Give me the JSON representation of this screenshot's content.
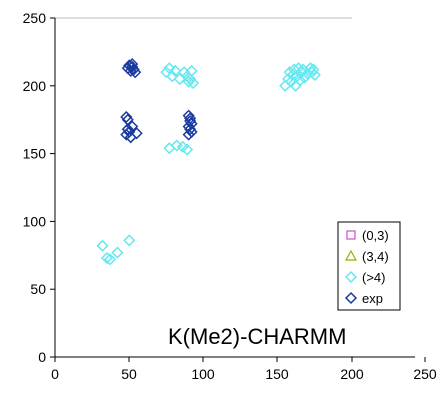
{
  "chart_data": {
    "type": "scatter",
    "title": "",
    "xlabel": "",
    "ylabel": "",
    "xlim": [
      0,
      250
    ],
    "ylim": [
      0,
      250
    ],
    "xticks": [
      0,
      50,
      100,
      150,
      200,
      250
    ],
    "yticks": [
      0,
      50,
      100,
      150,
      200,
      250
    ],
    "grid": false,
    "legend_position": "right",
    "annotation": "K(Me2)-CHARMM",
    "series": [
      {
        "name": "(0,3)",
        "marker": "square",
        "color": "#d24dcf",
        "points": []
      },
      {
        "name": "(3,4)",
        "marker": "triangle",
        "color": "#a8a800",
        "points": []
      },
      {
        "name": "(>4)",
        "marker": "diamond",
        "color": "#66e8f0",
        "points": [
          [
            32,
            82
          ],
          [
            35,
            73
          ],
          [
            37,
            72
          ],
          [
            42,
            77
          ],
          [
            50,
            86
          ],
          [
            75,
            210
          ],
          [
            77,
            213
          ],
          [
            79,
            207
          ],
          [
            81,
            211
          ],
          [
            84,
            205
          ],
          [
            77,
            154
          ],
          [
            82,
            156
          ],
          [
            86,
            155
          ],
          [
            89,
            153
          ],
          [
            87,
            210
          ],
          [
            89,
            207
          ],
          [
            90,
            203
          ],
          [
            91,
            205
          ],
          [
            93,
            202
          ],
          [
            92,
            211
          ],
          [
            155,
            200
          ],
          [
            157,
            205
          ],
          [
            158,
            210
          ],
          [
            159,
            203
          ],
          [
            160,
            208
          ],
          [
            161,
            212
          ],
          [
            162,
            200
          ],
          [
            163,
            207
          ],
          [
            164,
            213
          ],
          [
            165,
            204
          ],
          [
            166,
            210
          ],
          [
            167,
            212
          ],
          [
            168,
            206
          ],
          [
            170,
            209
          ],
          [
            172,
            213
          ],
          [
            173,
            210
          ],
          [
            174,
            212
          ],
          [
            175,
            208
          ]
        ]
      },
      {
        "name": "exp",
        "marker": "diamond",
        "color": "#1a3aa0",
        "points": [
          [
            49,
            213
          ],
          [
            50,
            215
          ],
          [
            51,
            211
          ],
          [
            52,
            216
          ],
          [
            52,
            214
          ],
          [
            53,
            212
          ],
          [
            54,
            210
          ],
          [
            48,
            177
          ],
          [
            49,
            175
          ],
          [
            49,
            168
          ],
          [
            50,
            166
          ],
          [
            48,
            164
          ],
          [
            51,
            162
          ],
          [
            52,
            170
          ],
          [
            55,
            165
          ],
          [
            90,
            178
          ],
          [
            91,
            174
          ],
          [
            92,
            172
          ],
          [
            90,
            170
          ],
          [
            91,
            168
          ],
          [
            92,
            166
          ],
          [
            90,
            164
          ],
          [
            91,
            176
          ]
        ]
      }
    ]
  }
}
